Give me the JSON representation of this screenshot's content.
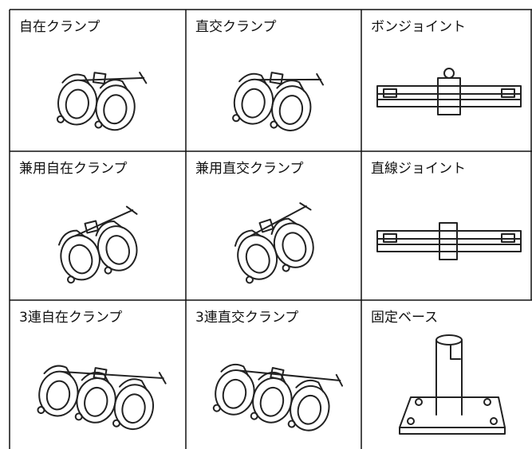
{
  "table": {
    "rows": [
      [
        "自在クランプ",
        "直交クランプ",
        "ボンジョイント"
      ],
      [
        "兼用自在クランプ",
        "兼用直交クランプ",
        "直線ジョイント"
      ],
      [
        "3連自在クランプ",
        "3連直交クランプ",
        "固定ベース"
      ]
    ]
  }
}
